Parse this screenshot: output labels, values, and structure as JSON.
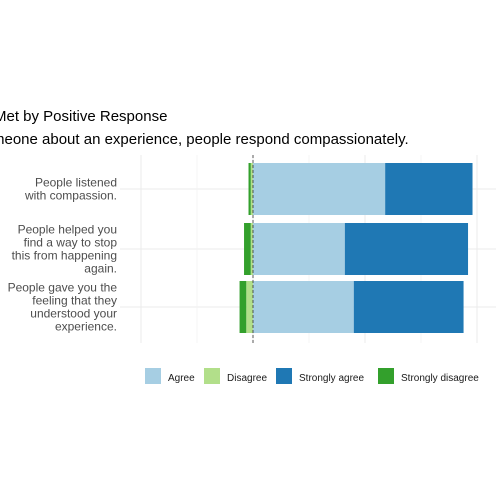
{
  "header": {
    "title": "Met by Positive Response",
    "subtitle": "meone about an experience, people respond compassionately."
  },
  "chart_data": {
    "type": "bar",
    "stacked": "diverging",
    "orientation": "horizontal",
    "title": "Met by Positive Response",
    "subtitle": "meone about an experience, people respond compassionately.",
    "categories": [
      "People listened with compassion.",
      "People helped you find a way to stop this from happening again.",
      "People gave you the feeling that they understood your experience."
    ],
    "category_lines": [
      [
        "People listened",
        "with compassion."
      ],
      [
        "People helped you",
        "find a way to stop",
        "this from happening",
        "again."
      ],
      [
        "People gave you the",
        "feeling that they",
        "understood your",
        "experience."
      ]
    ],
    "series": [
      {
        "name": "Agree",
        "color": "#a6cee3",
        "values": [
          59,
          41,
          45
        ]
      },
      {
        "name": "Disagree",
        "color": "#b2df8a",
        "values": [
          -1,
          -1,
          -3
        ]
      },
      {
        "name": "Strongly agree",
        "color": "#1f78b4",
        "values": [
          39,
          55,
          49
        ]
      },
      {
        "name": "Strongly disagree",
        "color": "#33a02c",
        "values": [
          -1,
          -3,
          -3
        ]
      }
    ],
    "xlim": [
      -50,
      100
    ],
    "grid": true,
    "zero_line": "dashed",
    "legend": {
      "position": "bottom",
      "entries": [
        "Agree",
        "Disagree",
        "Strongly agree",
        "Strongly disagree"
      ]
    }
  }
}
